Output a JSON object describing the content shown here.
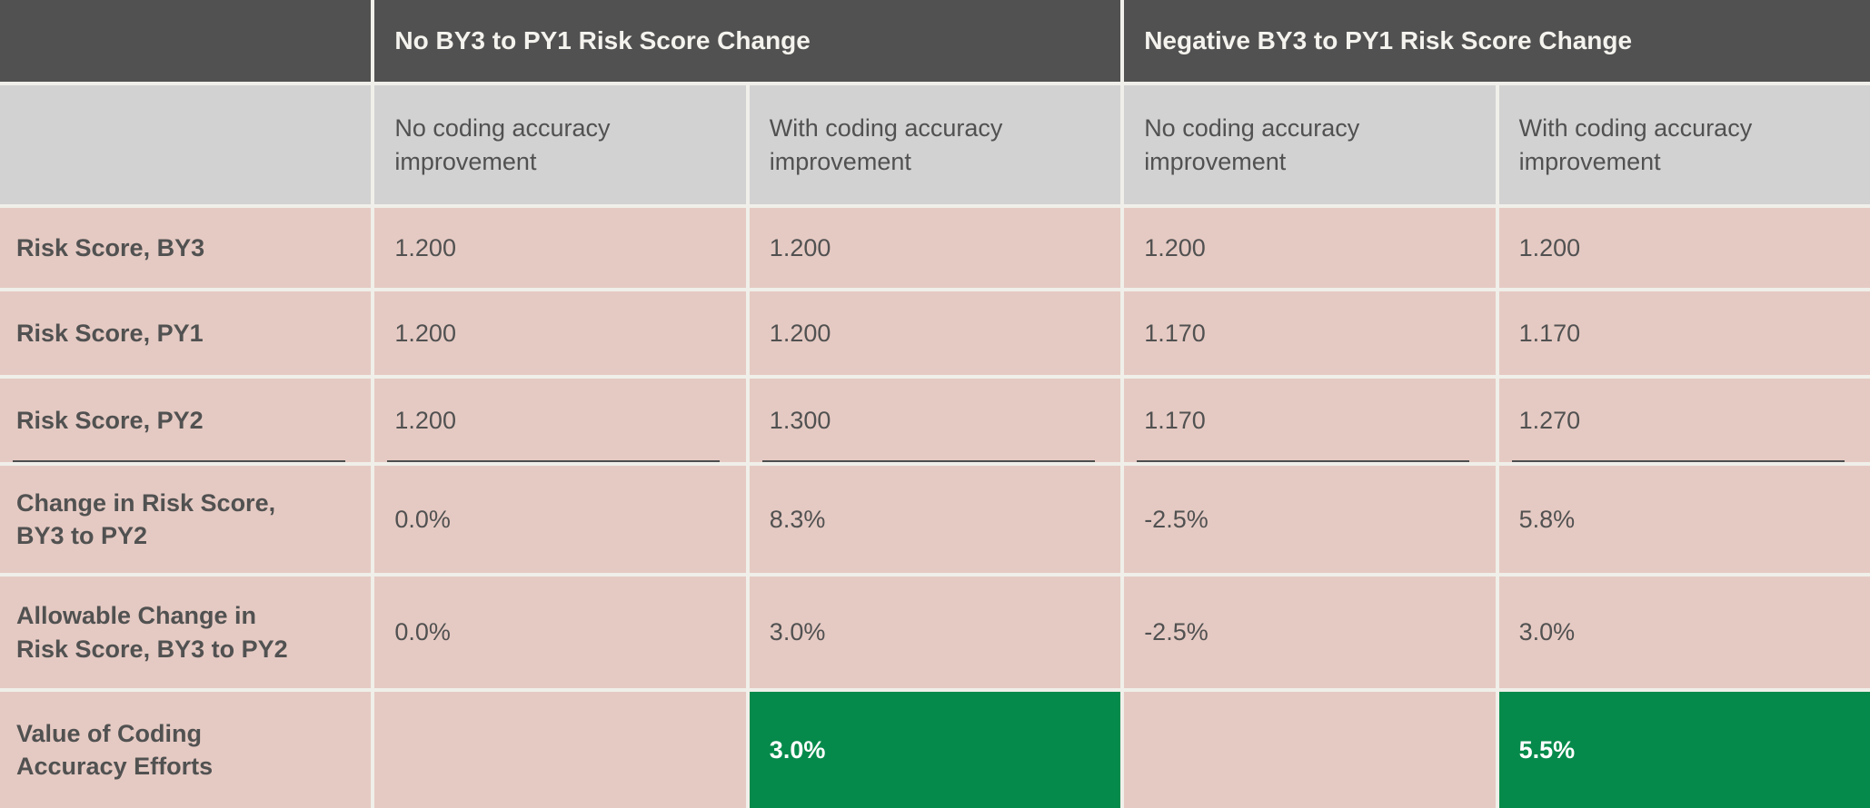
{
  "colors": {
    "group_header_bg": "#515151",
    "group_header_text": "#f5f3ee",
    "column_header_bg": "#d2d2d2",
    "body_cell_bg": "#e5cac3",
    "body_text": "#515151",
    "highlight_cell_bg": "#068a4b",
    "highlight_cell_text": "#ffffff",
    "separator": "#f0efe9",
    "sum_rule": "#4e4e4e"
  },
  "chart_data": {
    "type": "table",
    "group_columns": [
      {
        "label": "No BY3 to PY1 Risk Score Change",
        "span": 2
      },
      {
        "label": "Negative BY3 to PY1 Risk Score Change",
        "span": 2
      }
    ],
    "sub_columns": [
      "No coding accuracy\nimprovement",
      "With coding accuracy\nimprovement",
      "No coding accuracy\nimprovement",
      "With coding accuracy\nimprovement"
    ],
    "rows": [
      {
        "label": "Risk Score, BY3",
        "values": [
          "1.200",
          "1.200",
          "1.200",
          "1.200"
        ]
      },
      {
        "label": "Risk Score, PY1",
        "values": [
          "1.200",
          "1.200",
          "1.170",
          "1.170"
        ]
      },
      {
        "label": "Risk Score, PY2",
        "values": [
          "1.200",
          "1.300",
          "1.170",
          "1.270"
        ],
        "rule_below": true
      },
      {
        "label": "Change in Risk Score,\nBY3 to PY2",
        "values": [
          "0.0%",
          "8.3%",
          "-2.5%",
          "5.8%"
        ]
      },
      {
        "label": "Allowable Change in\nRisk Score, BY3 to PY2",
        "values": [
          "0.0%",
          "3.0%",
          "-2.5%",
          "3.0%"
        ]
      },
      {
        "label": "Value of Coding\nAccuracy Efforts",
        "values": [
          "",
          "3.0%",
          "",
          "5.5%"
        ],
        "highlighted_columns": [
          1,
          3
        ]
      }
    ]
  }
}
